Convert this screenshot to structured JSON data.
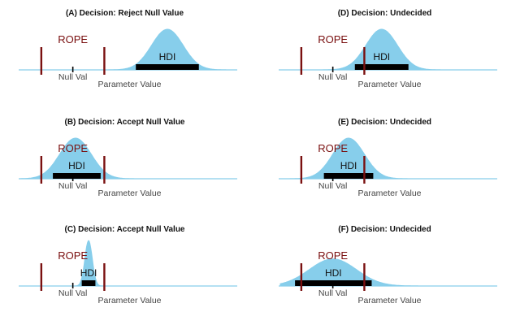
{
  "figure": {
    "rope_label": "ROPE",
    "hdi_label": "HDI",
    "null_label": "Null Val",
    "param_label": "Parameter Value",
    "colors": {
      "density": "#87ceeb",
      "baseline": "#87ceeb",
      "rope_line": "#7a1010",
      "rope_text": "#7a1010",
      "hdi_bar": "#000000",
      "null_tick": "#000000"
    }
  },
  "panels": [
    {
      "title": "(A) Decision: Reject Null Value",
      "null_value": 0.0,
      "rope": [
        -0.6,
        0.6
      ],
      "posterior": {
        "mean": 1.8,
        "sd": 0.3
      },
      "hdi": [
        1.2,
        2.4
      ]
    },
    {
      "title": "(B) Decision: Accept Null Value",
      "null_value": 0.0,
      "rope": [
        -0.6,
        0.6
      ],
      "posterior": {
        "mean": 0.05,
        "sd": 0.3
      },
      "hdi": [
        -0.38,
        0.53
      ]
    },
    {
      "title": "(C) Decision: Accept Null Value",
      "null_value": 0.0,
      "rope": [
        -0.6,
        0.6
      ],
      "posterior": {
        "mean": 0.3,
        "sd": 0.07
      },
      "hdi": [
        0.17,
        0.43
      ]
    },
    {
      "title": "(D) Decision: Undecided",
      "null_value": 0.0,
      "rope": [
        -0.6,
        0.6
      ],
      "posterior": {
        "mean": 0.93,
        "sd": 0.3
      },
      "hdi": [
        0.42,
        1.44
      ]
    },
    {
      "title": "(E) Decision: Undecided",
      "null_value": 0.0,
      "rope": [
        -0.6,
        0.6
      ],
      "posterior": {
        "mean": 0.3,
        "sd": 0.3
      },
      "hdi": [
        -0.17,
        0.77
      ]
    },
    {
      "title": "(F) Decision: Undecided",
      "null_value": 0.0,
      "rope": [
        -0.6,
        0.6
      ],
      "posterior": {
        "mean": 0.0,
        "sd": 0.45
      },
      "hdi": [
        -0.72,
        0.74
      ]
    }
  ]
}
